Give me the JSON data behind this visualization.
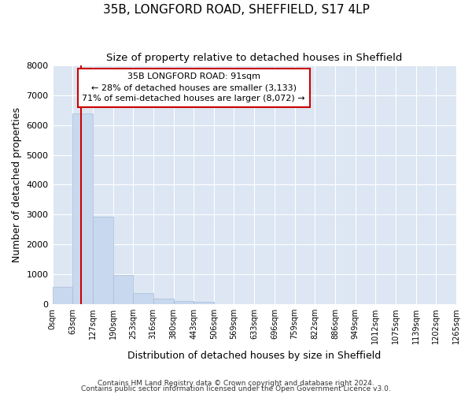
{
  "title": "35B, LONGFORD ROAD, SHEFFIELD, S17 4LP",
  "subtitle": "Size of property relative to detached houses in Sheffield",
  "xlabel": "Distribution of detached houses by size in Sheffield",
  "ylabel": "Number of detached properties",
  "bar_color": "#c8d8ee",
  "bar_edge_color": "#a8bcd8",
  "background_color": "#dde6f3",
  "grid_color": "#ffffff",
  "bin_edges": [
    0,
    63,
    127,
    190,
    253,
    316,
    380,
    443,
    506,
    569,
    633,
    696,
    759,
    822,
    886,
    949,
    1012,
    1075,
    1139,
    1202,
    1265
  ],
  "bin_labels": [
    "0sqm",
    "63sqm",
    "127sqm",
    "190sqm",
    "253sqm",
    "316sqm",
    "380sqm",
    "443sqm",
    "506sqm",
    "569sqm",
    "633sqm",
    "696sqm",
    "759sqm",
    "822sqm",
    "886sqm",
    "949sqm",
    "1012sqm",
    "1075sqm",
    "1139sqm",
    "1202sqm",
    "1265sqm"
  ],
  "counts": [
    570,
    6380,
    2920,
    970,
    370,
    175,
    110,
    75,
    0,
    0,
    0,
    0,
    0,
    0,
    0,
    0,
    0,
    0,
    0,
    0
  ],
  "property_size": 91,
  "vline_color": "#cc0000",
  "annotation_box_color": "#cc0000",
  "annotation_line1": "35B LONGFORD ROAD: 91sqm",
  "annotation_line2": "← 28% of detached houses are smaller (3,133)",
  "annotation_line3": "71% of semi-detached houses are larger (8,072) →",
  "ylim": [
    0,
    8000
  ],
  "yticks": [
    0,
    1000,
    2000,
    3000,
    4000,
    5000,
    6000,
    7000,
    8000
  ],
  "footnote1": "Contains HM Land Registry data © Crown copyright and database right 2024.",
  "footnote2": "Contains public sector information licensed under the Open Government Licence v3.0.",
  "fig_width": 6.0,
  "fig_height": 5.0
}
